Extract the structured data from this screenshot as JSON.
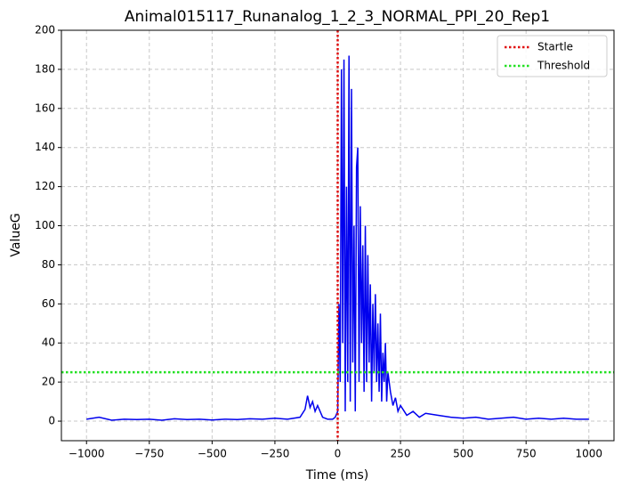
{
  "chart_data": {
    "type": "line",
    "title": "Animal015117_Runanalog_1_2_3_NORMAL_PPI_20_Rep1",
    "x_label": "Time (ms)",
    "y_label": "ValueG",
    "x": [
      -1000,
      -950,
      -900,
      -850,
      -800,
      -750,
      -700,
      -650,
      -600,
      -550,
      -500,
      -450,
      -400,
      -350,
      -300,
      -250,
      -200,
      -150,
      -130,
      -120,
      -110,
      -100,
      -90,
      -80,
      -60,
      -40,
      -20,
      -10,
      0,
      5,
      10,
      15,
      20,
      25,
      30,
      35,
      40,
      45,
      50,
      55,
      60,
      65,
      70,
      75,
      80,
      85,
      90,
      95,
      100,
      105,
      110,
      115,
      120,
      125,
      130,
      135,
      140,
      145,
      150,
      155,
      160,
      165,
      170,
      175,
      180,
      185,
      190,
      195,
      200,
      210,
      220,
      230,
      240,
      250,
      275,
      300,
      325,
      350,
      400,
      450,
      500,
      550,
      600,
      650,
      700,
      750,
      800,
      850,
      900,
      950,
      1000
    ],
    "series": [
      {
        "name": "ValueG",
        "color": "#0000ee",
        "values": [
          1,
          2,
          0.5,
          1,
          0.8,
          1,
          0.5,
          1.2,
          0.8,
          1,
          0.6,
          1,
          0.8,
          1.2,
          1,
          1.5,
          1,
          2,
          6,
          13,
          7,
          10,
          5,
          8,
          2,
          1,
          1,
          2,
          5,
          60,
          20,
          180,
          40,
          185,
          5,
          120,
          20,
          187,
          10,
          170,
          30,
          100,
          5,
          130,
          140,
          20,
          110,
          40,
          90,
          15,
          100,
          20,
          85,
          30,
          70,
          10,
          60,
          25,
          65,
          20,
          50,
          15,
          55,
          10,
          35,
          20,
          40,
          10,
          25,
          15,
          8,
          12,
          5,
          8,
          3,
          5,
          2,
          4,
          3,
          2,
          1.5,
          2,
          1,
          1.5,
          2,
          1,
          1.5,
          1,
          1.5,
          1,
          1
        ]
      }
    ],
    "reference_lines": [
      {
        "name": "Startle",
        "color": "#e01010",
        "orientation": "vertical",
        "value": 0
      },
      {
        "name": "Threshold",
        "color": "#22e022",
        "orientation": "horizontal",
        "value": 25
      }
    ],
    "xlim": [
      -1100,
      1100
    ],
    "xticks": [
      {
        "value": -1000,
        "label": "−1000"
      },
      {
        "value": -750,
        "label": "−750"
      },
      {
        "value": -500,
        "label": "−500"
      },
      {
        "value": -250,
        "label": "−250"
      },
      0,
      250,
      500,
      750,
      1000
    ],
    "ylim": [
      -10,
      200
    ],
    "yticks": [
      0,
      20,
      40,
      60,
      80,
      100,
      120,
      140,
      160,
      180,
      200
    ],
    "grid": true,
    "legend": "upper right"
  }
}
